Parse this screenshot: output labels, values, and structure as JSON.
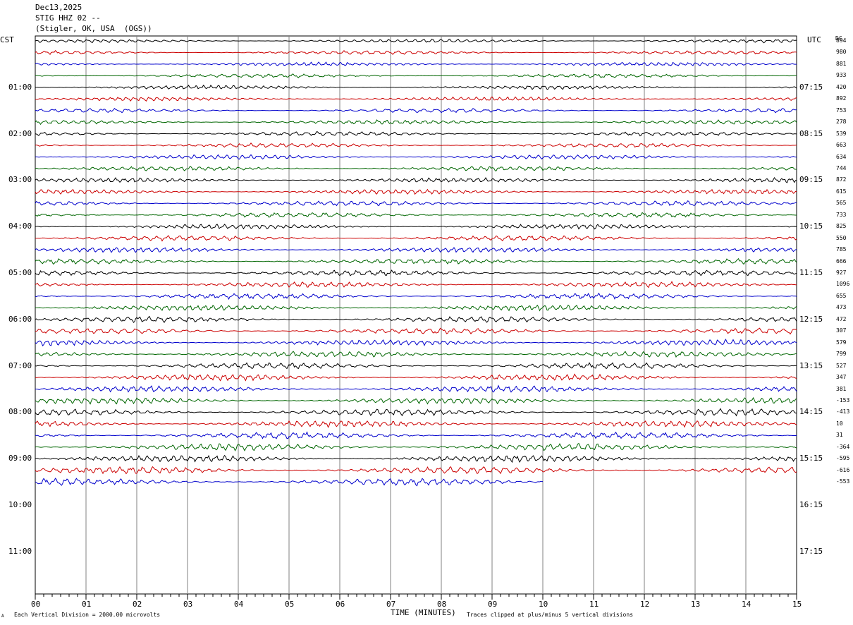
{
  "header": {
    "date": "Dec13,2025",
    "station": "STIG HHZ 02 --",
    "location": "(Stigler, OK, USA  (OGS))"
  },
  "left_tz": "CST",
  "right_tz": "UTC",
  "dc_label": "DC",
  "footer": {
    "scale_note": "Each Vertical Division = 2000.00 microvolts",
    "x_title": "TIME (MINUTES)",
    "clip_note": "Traces clipped at plus/minus 5 vertical divisions",
    "corner_mark": "A"
  },
  "chart_data": {
    "type": "line",
    "title": "",
    "xlabel": "TIME (MINUTES)",
    "ylabel": "",
    "xlim": [
      0,
      15
    ],
    "x_ticks": [
      "00",
      "01",
      "02",
      "03",
      "04",
      "05",
      "06",
      "07",
      "08",
      "09",
      "10",
      "11",
      "12",
      "13",
      "14",
      "15"
    ],
    "grid": "vertical lines every minute",
    "hours_left": [
      "01:00",
      "02:00",
      "03:00",
      "04:00",
      "05:00",
      "06:00",
      "07:00",
      "08:00",
      "09:00",
      "10:00",
      "11:00"
    ],
    "hours_right": [
      "07:15",
      "08:15",
      "09:15",
      "10:15",
      "11:15",
      "12:15",
      "13:15",
      "14:15",
      "15:15",
      "16:15",
      "17:15"
    ],
    "trace_colors": [
      "#000000",
      "#cc0000",
      "#0000cc",
      "#006600"
    ],
    "dc_offsets": [
      "894",
      "980",
      "881",
      "933",
      "420",
      "892",
      "753",
      "278",
      "539",
      "663",
      "634",
      "744",
      "872",
      "615",
      "565",
      "733",
      "825",
      "550",
      "785",
      "666",
      "927",
      "1096",
      "655",
      "473",
      "472",
      "307",
      "579",
      "799",
      "527",
      "347",
      "381",
      "-153",
      "-413",
      "10",
      "31",
      "-364",
      "-595",
      "-616",
      "-553"
    ],
    "last_trace_end_minute": 10
  }
}
